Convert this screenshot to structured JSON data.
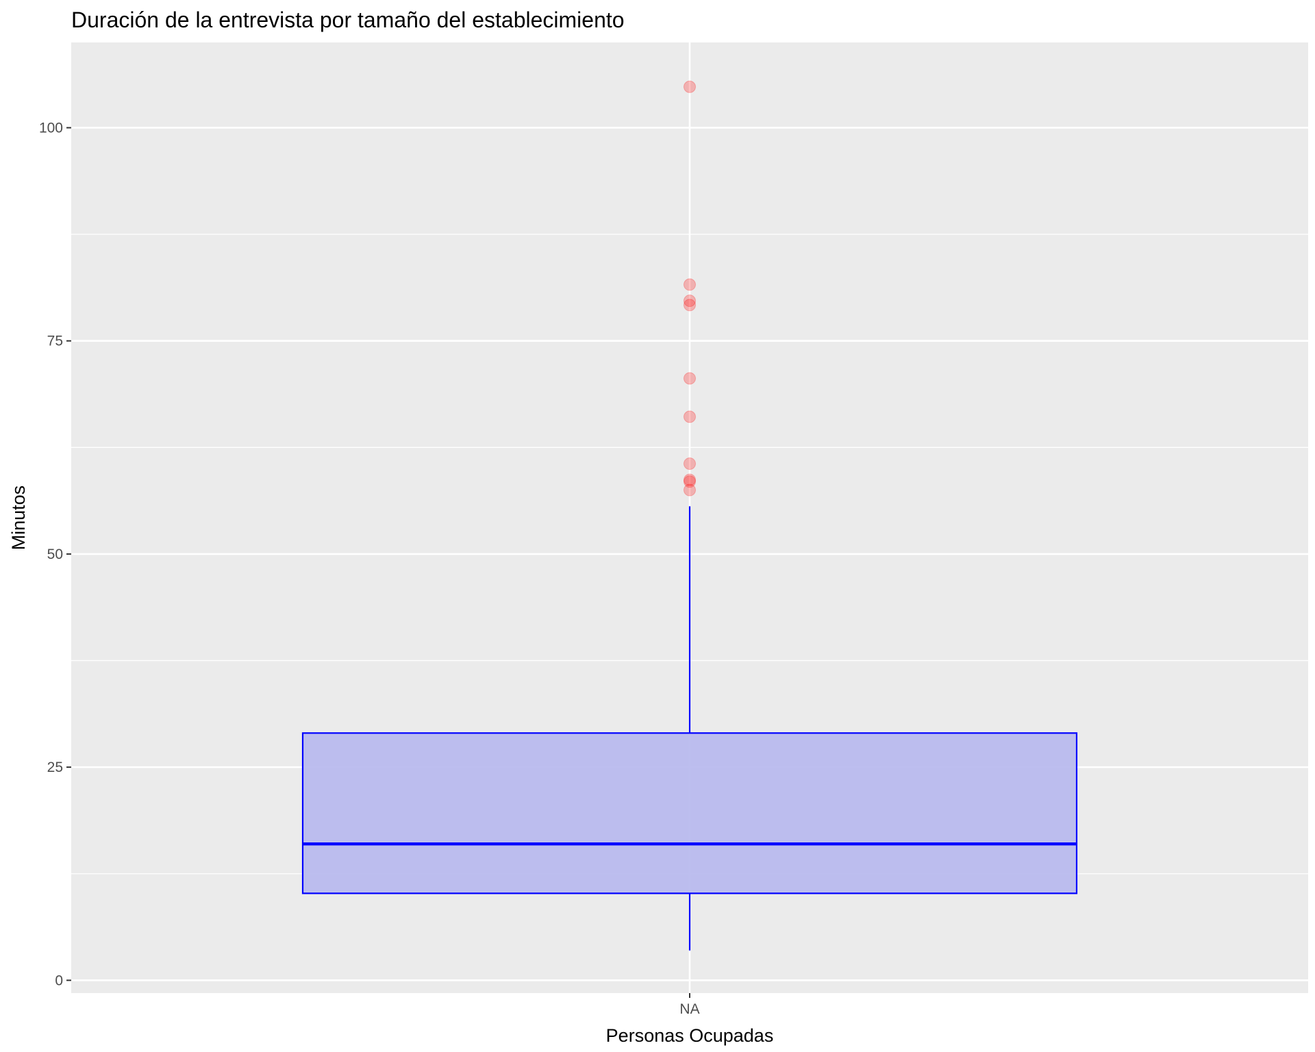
{
  "chart_data": {
    "type": "boxplot",
    "title": "Duración de la entrevista por tamaño del establecimiento",
    "xlabel": "Personas Ocupadas",
    "ylabel": "Minutos",
    "categories": [
      "NA"
    ],
    "ylim": [
      -1.5,
      110
    ],
    "y_ticks": [
      0,
      25,
      50,
      75,
      100
    ],
    "y_tick_labels": [
      "0",
      "25",
      "50",
      "75",
      "100"
    ],
    "y_minor_ticks": [
      12.5,
      37.5,
      62.5,
      87.5
    ],
    "grid": true,
    "legend": "none",
    "box": {
      "category": "NA",
      "lower_whisker": 3.5,
      "q1": 10.2,
      "median": 16.0,
      "q3": 29.0,
      "upper_whisker": 55.6
    },
    "outliers": [
      57.5,
      58.5,
      58.7,
      60.6,
      66.1,
      70.6,
      79.2,
      79.7,
      81.6,
      104.8
    ],
    "colors": {
      "panel_background": "#ebebeb",
      "grid": "#ffffff",
      "box_fill": "#b9bbee",
      "box_line": "#0000ff",
      "outlier": "#ff0000"
    }
  }
}
